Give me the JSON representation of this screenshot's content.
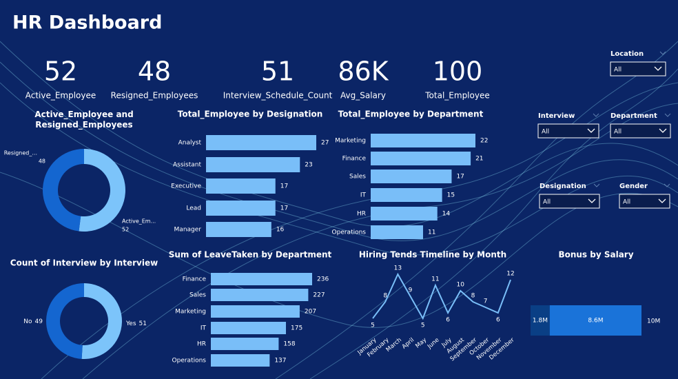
{
  "header": {
    "title": "HR Dashboard"
  },
  "kpis": [
    {
      "value": 52,
      "label": "Active_Employee"
    },
    {
      "value": 48,
      "label": "Resigned_Employees"
    },
    {
      "value": 51,
      "label": "Interview_Schedule_Count"
    },
    {
      "value": "86K",
      "label": "Avg_Salary"
    },
    {
      "value": 100,
      "label": "Total_Employee"
    }
  ],
  "slicers": [
    {
      "label": "Location",
      "selection": "All"
    },
    {
      "label": "Interview",
      "selection": "All"
    },
    {
      "label": "Department",
      "selection": "All"
    },
    {
      "label": "Designation",
      "selection": "All"
    },
    {
      "label": "Gender",
      "selection": "All"
    }
  ],
  "chart_data": [
    {
      "type": "donut",
      "title": "Active_Employee and Resigned_Employees",
      "categories": [
        "Active_Em...",
        "Resigned_..."
      ],
      "values": [
        52,
        48
      ],
      "colors": [
        "#7cc4fa",
        "#1466d0"
      ]
    },
    {
      "type": "hbar",
      "title": "Total_Employee by Designation",
      "categories": [
        "Analyst",
        "Assistant",
        "Executive",
        "Lead",
        "Manager"
      ],
      "values": [
        27,
        23,
        17,
        17,
        16
      ],
      "color": "#79bef8"
    },
    {
      "type": "hbar",
      "title": "Total_Employee by Department",
      "categories": [
        "Marketing",
        "Finance",
        "Sales",
        "IT",
        "HR",
        "Operations"
      ],
      "values": [
        22,
        21,
        17,
        15,
        14,
        11
      ],
      "color": "#79bef8"
    },
    {
      "type": "donut",
      "title": "Count of Interview by Interview",
      "categories": [
        "Yes",
        "No"
      ],
      "values": [
        51,
        49
      ],
      "colors": [
        "#7cc4fa",
        "#1466d0"
      ]
    },
    {
      "type": "hbar",
      "title": "Sum of LeaveTaken by Department",
      "categories": [
        "Finance",
        "Sales",
        "Marketing",
        "IT",
        "HR",
        "Operations"
      ],
      "values": [
        236,
        227,
        207,
        175,
        158,
        137
      ],
      "color": "#79bef8"
    },
    {
      "type": "line",
      "title": "Hiring Tends Timeline by Month",
      "categories": [
        "January",
        "February",
        "March",
        "April",
        "May",
        "June",
        "July",
        "August",
        "September",
        "October",
        "November",
        "December"
      ],
      "values": [
        5,
        8,
        13,
        9,
        5,
        11,
        6,
        10,
        8,
        7,
        6,
        12
      ],
      "color": "#79bef8"
    },
    {
      "type": "stacked-bar",
      "title": "Bonus by Salary",
      "values": [
        1800000,
        8600000
      ],
      "value_labels": [
        "1.8M",
        "8.6M"
      ],
      "colors": [
        "#0a3f85",
        "#1a73d9"
      ],
      "total_label": "10M"
    }
  ]
}
